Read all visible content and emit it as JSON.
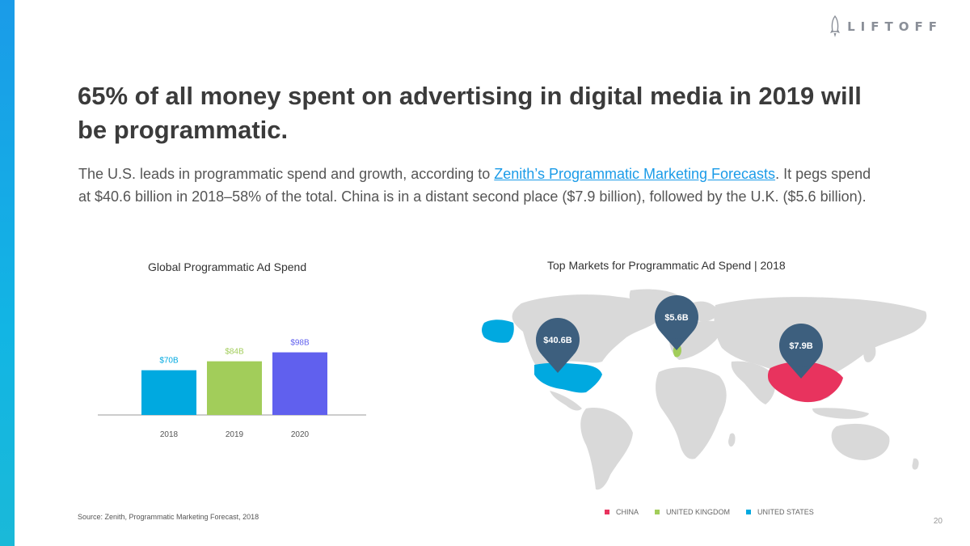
{
  "brand": {
    "name": "LIFTOFF"
  },
  "headline": "65% of all money spent on advertising in digital media in 2019 will be programmatic.",
  "body": {
    "before_link": "The U.S. leads in programmatic spend and growth, according to ",
    "link_text": "Zenith’s Programmatic Marketing Forecasts",
    "after_link": ". It pegs spend at $40.6 billion in 2018–58% of the total. China is in a distant second place ($7.9 billion), followed by the U.K. ($5.6 billion)."
  },
  "chart_data": [
    {
      "type": "bar",
      "title": "Global Programmatic Ad Spend",
      "categories": [
        "2018",
        "2019",
        "2020"
      ],
      "values": [
        70,
        84,
        98
      ],
      "data_labels": [
        "$70B",
        "$84B",
        "$98B"
      ],
      "colors": [
        "#00a9e0",
        "#a2cd5a",
        "#6060ee"
      ],
      "ylim": [
        0,
        100
      ],
      "xlabel": "",
      "ylabel": "",
      "grid": false
    },
    {
      "type": "map",
      "title": "Top Markets for Programmatic Ad Spend | 2018",
      "markers": [
        {
          "label": "$40.6B",
          "region": "UNITED STATES",
          "value": 40.6,
          "color": "#00a9e0"
        },
        {
          "label": "$5.6B",
          "region": "UNITED KINGDOM",
          "value": 5.6,
          "color": "#a2cd5a"
        },
        {
          "label": "$7.9B",
          "region": "CHINA",
          "value": 7.9,
          "color": "#e8335e"
        }
      ],
      "legend": [
        {
          "label": "CHINA",
          "color": "#e8335e"
        },
        {
          "label": "UNITED KINGDOM",
          "color": "#a2cd5a"
        },
        {
          "label": "UNITED STATES",
          "color": "#00a9e0"
        }
      ],
      "pin_color": "#3d5f7e",
      "land_color": "#d9d9d9",
      "legend_position": "bottom"
    }
  ],
  "source": "Source: Zenith, Programmatic Marketing Forecast, 2018",
  "page_number": "20"
}
